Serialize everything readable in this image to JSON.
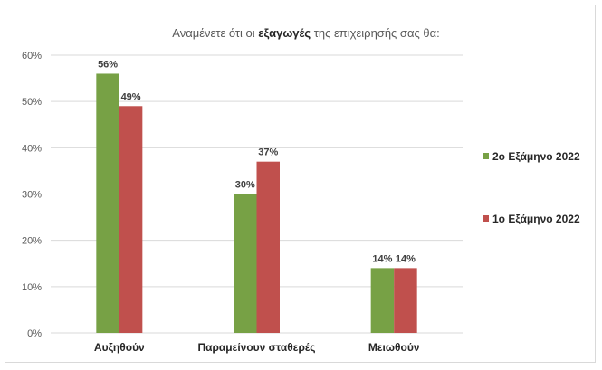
{
  "chart_data": {
    "type": "bar",
    "title": {
      "before": "Αναμένετε ότι οι ",
      "bold": "εξαγωγές",
      "after": " της επιχειρησής σας θα:"
    },
    "categories": [
      "Αυξηθούν",
      "Παραμείνουν σταθερές",
      "Μειωθούν"
    ],
    "series": [
      {
        "name": "2ο Εξάμηνο 2022",
        "values": [
          56,
          30,
          14
        ],
        "labels": [
          "56%",
          "30%",
          "14%"
        ],
        "color": "#77a145"
      },
      {
        "name": "1ο Εξάμηνο 2022",
        "values": [
          49,
          37,
          14
        ],
        "labels": [
          "49%",
          "37%",
          "14%"
        ],
        "color": "#c0504d"
      }
    ],
    "y_ticks": [
      0,
      10,
      20,
      30,
      40,
      50,
      60
    ],
    "y_tick_labels": [
      "0%",
      "10%",
      "20%",
      "30%",
      "40%",
      "50%",
      "60%"
    ],
    "ylim": [
      0,
      60
    ],
    "gridlines": true,
    "gridline_color": "#d9d9d9",
    "legend_position": "right"
  }
}
